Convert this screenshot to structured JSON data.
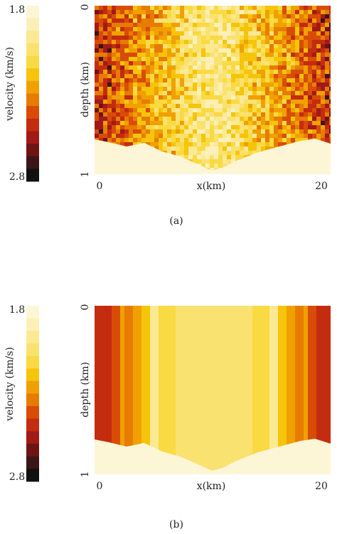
{
  "colormap": [
    "#fdf6d6",
    "#fcf0b8",
    "#fbe994",
    "#fae270",
    "#f9da42",
    "#f6c40a",
    "#f0a000",
    "#e77c00",
    "#d84c06",
    "#c42c10",
    "#a21a18",
    "#6e1414",
    "#3c1616",
    "#111111"
  ],
  "panels": [
    {
      "colorbar": {
        "label": "velocity (km/s)",
        "ticks": [
          1.8,
          2.8
        ]
      },
      "y_axis": {
        "label": "depth (km)",
        "ticks": [
          0,
          1
        ]
      },
      "x_axis": {
        "label": "x(km)",
        "ticks": [
          0,
          20
        ]
      },
      "caption": "(a)"
    },
    {
      "colorbar": {
        "label": "velocity (km/s)",
        "ticks": [
          1.8,
          2.8
        ]
      },
      "y_axis": {
        "label": "depth (km)",
        "ticks": [
          0,
          1
        ]
      },
      "x_axis": {
        "label": "x(km)",
        "ticks": [
          0,
          20
        ]
      },
      "caption": "(b)"
    }
  ]
}
